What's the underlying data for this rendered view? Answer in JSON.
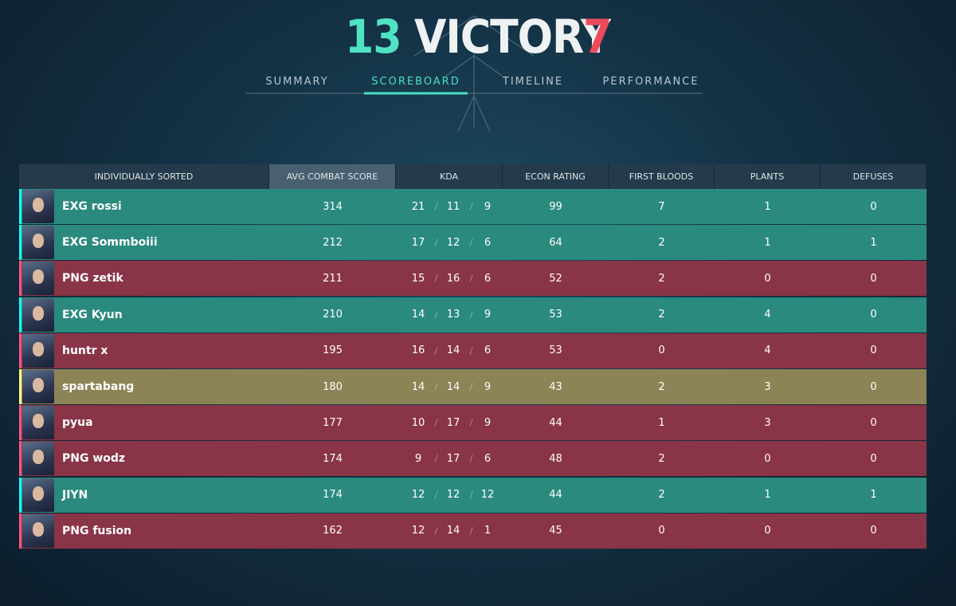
{
  "header": {
    "score_left": 13,
    "result": "VICTORY",
    "score_right": 7
  },
  "tabs": {
    "items": [
      "SUMMARY",
      "SCOREBOARD",
      "TIMELINE",
      "PERFORMANCE"
    ],
    "active": 1
  },
  "table": {
    "columns": [
      "INDIVIDUALLY SORTED",
      "AVG COMBAT SCORE",
      "KDA",
      "ECON RATING",
      "FIRST BLOODS",
      "PLANTS",
      "DEFUSES"
    ],
    "sorted_column": 1,
    "rows": [
      {
        "name": "EXG rossi",
        "acs": 314,
        "kda": [
          21,
          11,
          9
        ],
        "econ": 99,
        "first_bloods": 7,
        "plants": 1,
        "defuses": 0,
        "color": "#2a8a7d"
      },
      {
        "name": "EXG Sommboiii",
        "acs": 212,
        "kda": [
          17,
          12,
          6
        ],
        "econ": 64,
        "first_bloods": 2,
        "plants": 1,
        "defuses": 1,
        "color": "#2a8a7d"
      },
      {
        "name": "PNG zetik",
        "acs": 211,
        "kda": [
          15,
          16,
          6
        ],
        "econ": 52,
        "first_bloods": 2,
        "plants": 0,
        "defuses": 0,
        "color": "#8a3447"
      },
      {
        "name": "EXG Kyun",
        "acs": 210,
        "kda": [
          14,
          13,
          9
        ],
        "econ": 53,
        "first_bloods": 2,
        "plants": 4,
        "defuses": 0,
        "color": "#2a8a7d"
      },
      {
        "name": "huntr x",
        "acs": 195,
        "kda": [
          16,
          14,
          6
        ],
        "econ": 53,
        "first_bloods": 0,
        "plants": 4,
        "defuses": 0,
        "color": "#8a3447"
      },
      {
        "name": "spartabang",
        "acs": 180,
        "kda": [
          14,
          14,
          9
        ],
        "econ": 43,
        "first_bloods": 2,
        "plants": 3,
        "defuses": 0,
        "color": "#8c8456"
      },
      {
        "name": "pyua",
        "acs": 177,
        "kda": [
          10,
          17,
          9
        ],
        "econ": 44,
        "first_bloods": 1,
        "plants": 3,
        "defuses": 0,
        "color": "#8a3447"
      },
      {
        "name": "PNG wodz",
        "acs": 174,
        "kda": [
          9,
          17,
          6
        ],
        "econ": 48,
        "first_bloods": 2,
        "plants": 0,
        "defuses": 0,
        "color": "#8a3447"
      },
      {
        "name": "JIYN",
        "acs": 174,
        "kda": [
          12,
          12,
          12
        ],
        "econ": 44,
        "first_bloods": 2,
        "plants": 1,
        "defuses": 1,
        "color": "#2a8a7d"
      },
      {
        "name": "PNG fusion",
        "acs": 162,
        "kda": [
          12,
          14,
          1
        ],
        "econ": 45,
        "first_bloods": 0,
        "plants": 0,
        "defuses": 0,
        "color": "#8a3447"
      }
    ]
  }
}
